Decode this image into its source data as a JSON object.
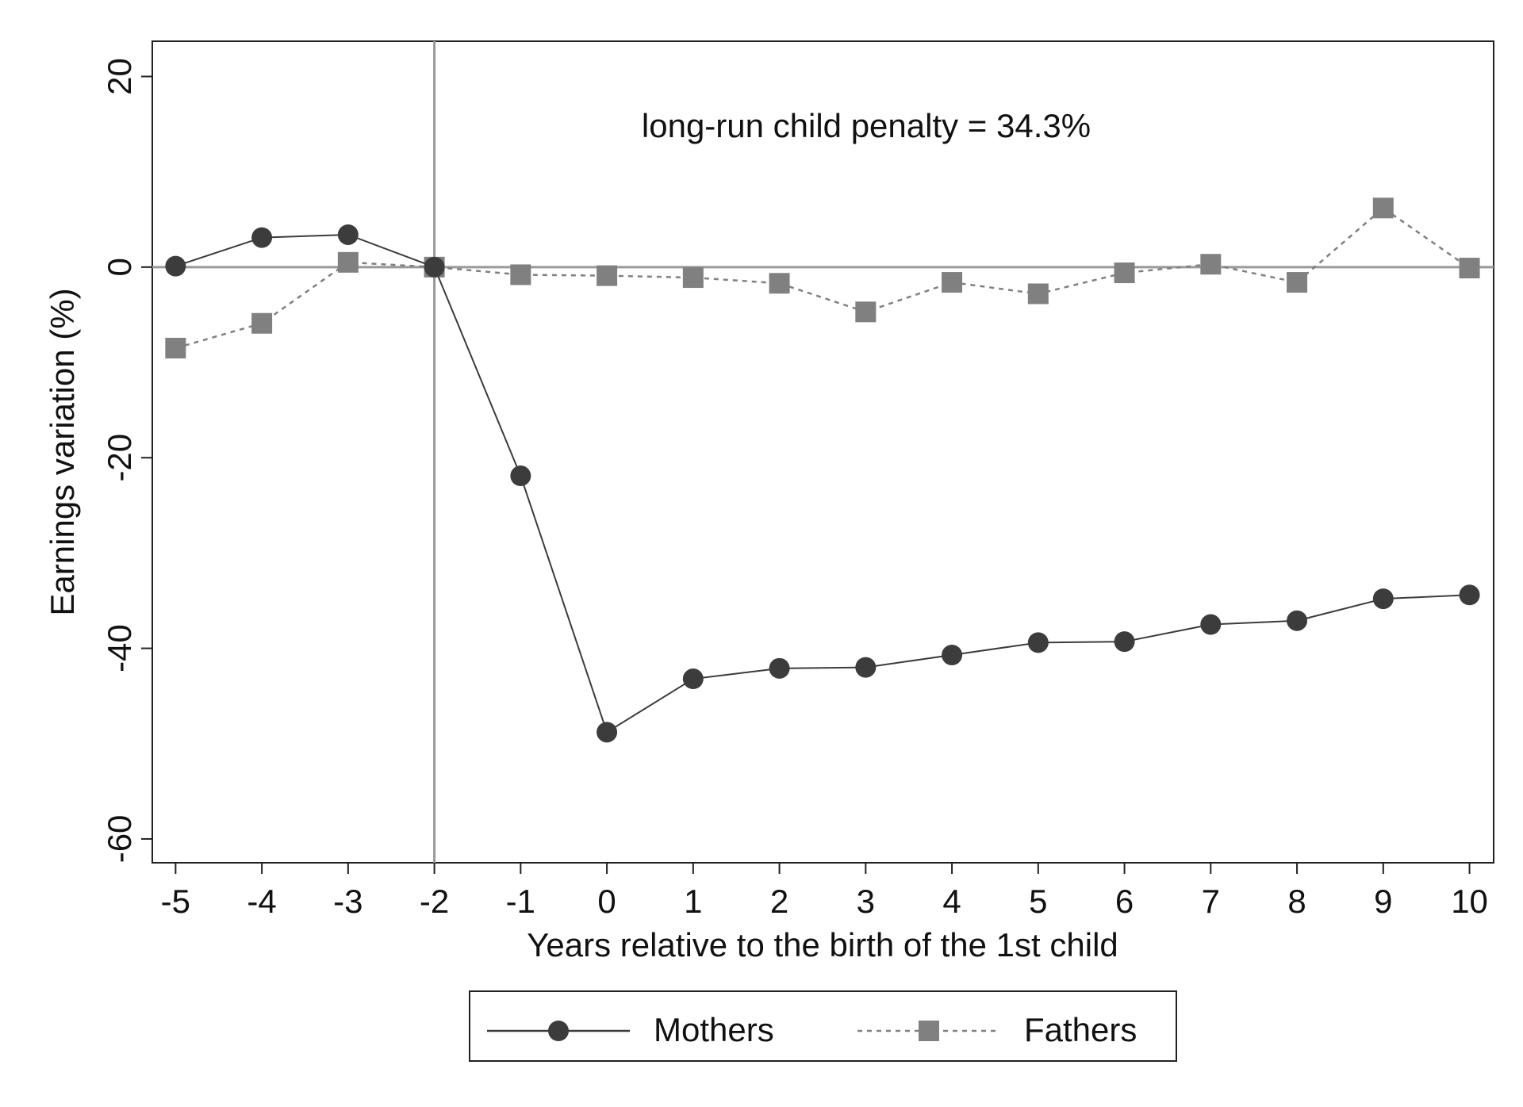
{
  "chart_data": {
    "type": "line",
    "x_label": "Years relative to the birth of the 1st child",
    "y_label": "Earnings variation (%)",
    "annotation": "long-run child penalty = 34.3%",
    "x": [
      -5,
      -4,
      -3,
      -2,
      -1,
      0,
      1,
      2,
      3,
      4,
      5,
      6,
      7,
      8,
      9,
      10
    ],
    "series": [
      {
        "name": "Mothers",
        "color": "#3c3c3c",
        "marker": "circle",
        "dash": false,
        "values": [
          0.1,
          3.1,
          3.4,
          0,
          -21.9,
          -48.8,
          -43.2,
          -42.1,
          -42.0,
          -40.7,
          -39.4,
          -39.3,
          -37.5,
          -37.1,
          -34.8,
          -34.4
        ]
      },
      {
        "name": "Fathers",
        "color": "#808080",
        "marker": "square",
        "dash": true,
        "values": [
          -8.5,
          -5.9,
          0.5,
          0,
          -0.8,
          -0.9,
          -1.1,
          -1.7,
          -4.7,
          -1.6,
          -2.8,
          -0.6,
          0.3,
          -1.6,
          6.2,
          -0.1
        ]
      }
    ],
    "xlim": [
      -5.27,
      10.28
    ],
    "xticks": [
      -5,
      -4,
      -3,
      -2,
      -1,
      0,
      1,
      2,
      3,
      4,
      5,
      6,
      7,
      8,
      9,
      10
    ],
    "ylim": [
      -62.5,
      23.7
    ],
    "yticks": [
      -60,
      -40,
      -20,
      0,
      20
    ],
    "vline": -2,
    "hline": 0,
    "legend": "bottom"
  }
}
